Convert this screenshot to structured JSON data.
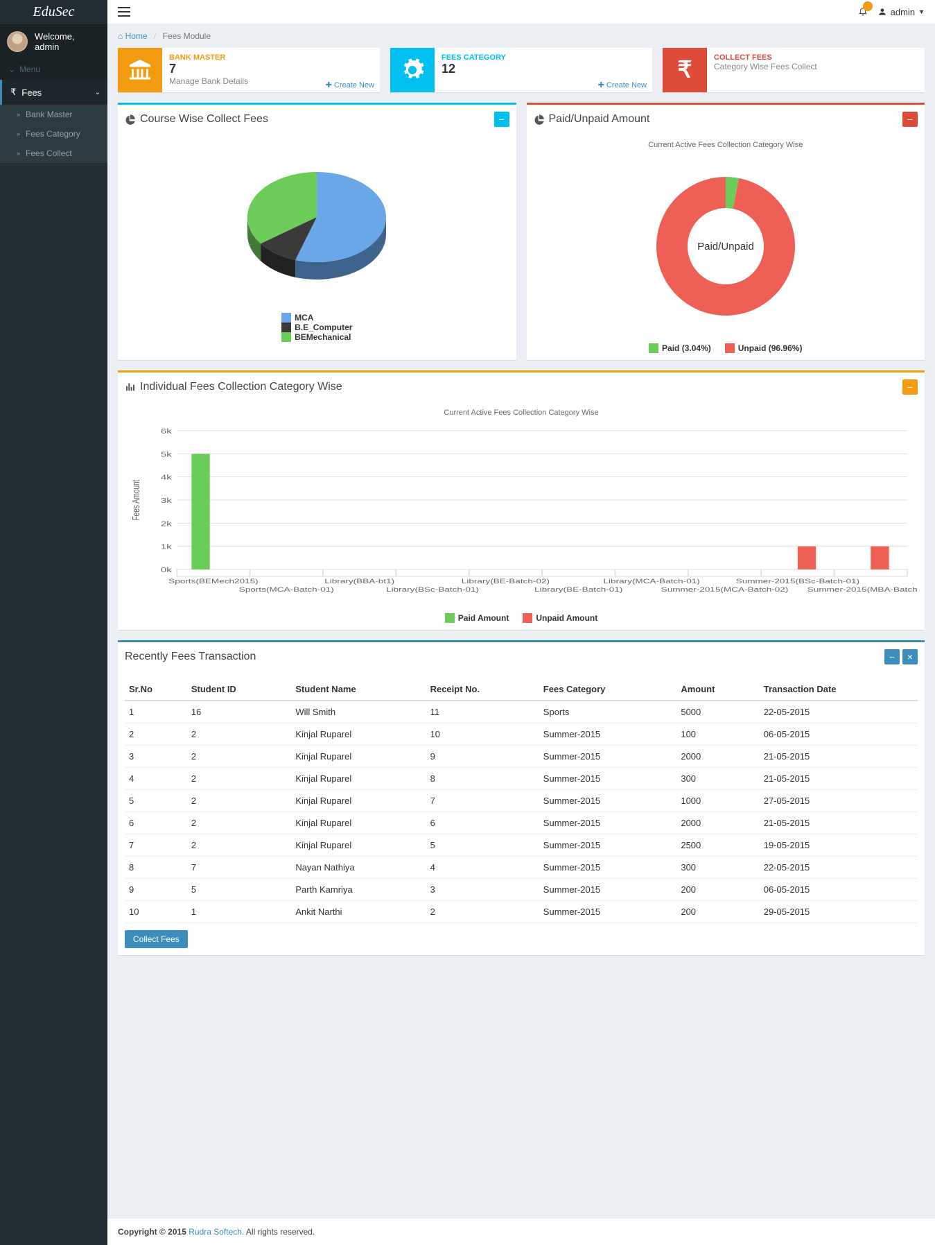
{
  "brand": "EduSec",
  "welcome": "Welcome, admin",
  "menu_label": "Menu",
  "nav": {
    "fees": "Fees",
    "sub": [
      "Bank Master",
      "Fees Category",
      "Fees Collect"
    ]
  },
  "topbar": {
    "user": "admin"
  },
  "breadcrumb": {
    "home": "Home",
    "current": "Fees Module"
  },
  "cards": [
    {
      "title": "BANK MASTER",
      "value": "7",
      "sub": "Manage Bank Details",
      "link": "Create New",
      "color": "#f39c12"
    },
    {
      "title": "FEES CATEGORY",
      "value": "12",
      "sub": "",
      "link": "Create New",
      "color": "#00c0ef"
    },
    {
      "title": "COLLECT FEES",
      "value": "",
      "sub": "Category Wise Fees Collect",
      "link": "",
      "color": "#dd4b39"
    }
  ],
  "pie_panel": {
    "title": "Course Wise Collect Fees",
    "legend": [
      "MCA",
      "B.E_Computer",
      "BEMechanical"
    ],
    "colors": [
      "#6aa7e8",
      "#3a3a3a",
      "#6ccc5a"
    ],
    "values": [
      55,
      10,
      35
    ]
  },
  "donut_panel": {
    "title": "Paid/Unpaid Amount",
    "subtitle": "Current Active Fees Collection Category Wise",
    "center": "Paid/Unpaid",
    "legend": [
      {
        "label": "Paid (3.04%)",
        "color": "#6ccc5a"
      },
      {
        "label": "Unpaid (96.96%)",
        "color": "#ee5f56"
      }
    ],
    "paid_pct": 3.04
  },
  "bar_panel": {
    "title": "Individual Fees Collection Category Wise",
    "subtitle": "Current Active Fees Collection Category Wise",
    "ylabel": "Fees Amount",
    "ymax": 6000,
    "ytick": 1000,
    "paid_color": "#6ccc5a",
    "unpaid_color": "#ee5f56",
    "categories_top": [
      "Sports(BEMech2015)",
      "Library(BBA-bt1)",
      "Library(BE-Batch-02)",
      "Library(MCA-Batch-01)",
      "Summer-2015(BSc-Batch-01)"
    ],
    "categories_bottom": [
      "Sports(MCA-Batch-01)",
      "Library(BSc-Batch-01)",
      "Library(BE-Batch-01)",
      "Summer-2015(MCA-Batch-02)",
      "Summer-2015(MBA-Batch-01)"
    ],
    "bars": [
      {
        "x": 0,
        "paid": 5000,
        "unpaid": 0
      },
      {
        "x": 1,
        "paid": 0,
        "unpaid": 0
      },
      {
        "x": 2,
        "paid": 0,
        "unpaid": 0
      },
      {
        "x": 3,
        "paid": 0,
        "unpaid": 0
      },
      {
        "x": 4,
        "paid": 0,
        "unpaid": 0
      },
      {
        "x": 5,
        "paid": 0,
        "unpaid": 0
      },
      {
        "x": 6,
        "paid": 0,
        "unpaid": 0
      },
      {
        "x": 7,
        "paid": 0,
        "unpaid": 0
      },
      {
        "x": 8,
        "paid": 0,
        "unpaid": 1000
      },
      {
        "x": 9,
        "paid": 0,
        "unpaid": 1000
      }
    ],
    "legend": [
      "Paid Amount",
      "Unpaid Amount"
    ]
  },
  "tx_panel": {
    "title": "Recently Fees Transaction",
    "columns": [
      "Sr.No",
      "Student ID",
      "Student Name",
      "Receipt No.",
      "Fees Category",
      "Amount",
      "Transaction Date"
    ],
    "rows": [
      [
        "1",
        "16",
        "Will Smith",
        "11",
        "Sports",
        "5000",
        "22-05-2015"
      ],
      [
        "2",
        "2",
        "Kinjal Ruparel",
        "10",
        "Summer-2015",
        "100",
        "06-05-2015"
      ],
      [
        "3",
        "2",
        "Kinjal Ruparel",
        "9",
        "Summer-2015",
        "2000",
        "21-05-2015"
      ],
      [
        "4",
        "2",
        "Kinjal Ruparel",
        "8",
        "Summer-2015",
        "300",
        "21-05-2015"
      ],
      [
        "5",
        "2",
        "Kinjal Ruparel",
        "7",
        "Summer-2015",
        "1000",
        "27-05-2015"
      ],
      [
        "6",
        "2",
        "Kinjal Ruparel",
        "6",
        "Summer-2015",
        "2000",
        "21-05-2015"
      ],
      [
        "7",
        "2",
        "Kinjal Ruparel",
        "5",
        "Summer-2015",
        "2500",
        "19-05-2015"
      ],
      [
        "8",
        "7",
        "Nayan Nathiya",
        "4",
        "Summer-2015",
        "300",
        "22-05-2015"
      ],
      [
        "9",
        "5",
        "Parth Kamriya",
        "3",
        "Summer-2015",
        "200",
        "06-05-2015"
      ],
      [
        "10",
        "1",
        "Ankit Narthi",
        "2",
        "Summer-2015",
        "200",
        "29-05-2015"
      ]
    ],
    "button": "Collect Fees"
  },
  "footer": {
    "copyright": "Copyright © 2015 ",
    "link": "Rudra Softech.",
    "rights": " All rights reserved."
  }
}
